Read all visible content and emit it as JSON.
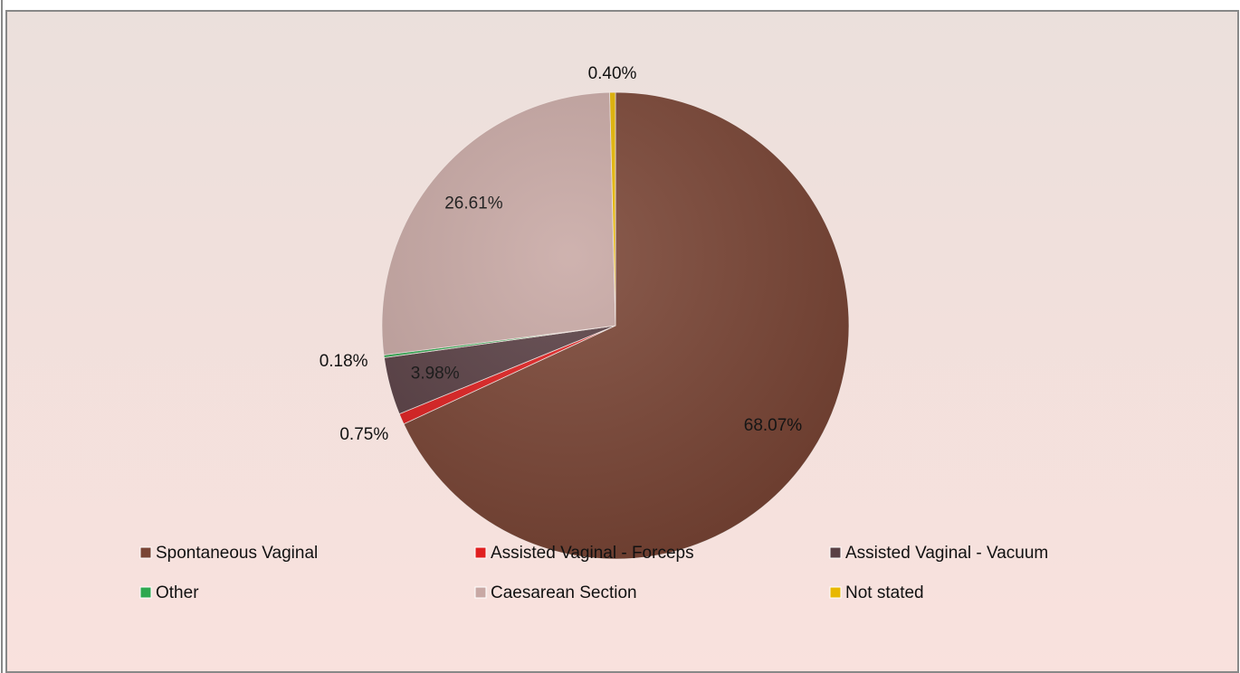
{
  "chart_data": {
    "type": "pie",
    "categories": [
      "Spontaneous Vaginal",
      "Assisted Vaginal - Forceps",
      "Assisted Vaginal - Vacuum",
      "Other",
      "Caesarean Section",
      "Not stated"
    ],
    "values": [
      68.07,
      0.75,
      3.98,
      0.18,
      26.61,
      0.4
    ],
    "value_labels": [
      "68.07%",
      "0.75%",
      "3.98%",
      "0.18%",
      "26.61%",
      "0.40%"
    ],
    "colors": [
      "#7a4535",
      "#e02020",
      "#5a4045",
      "#2ea84f",
      "#c8a8a4",
      "#e8b800"
    ],
    "legend": "bottom"
  }
}
